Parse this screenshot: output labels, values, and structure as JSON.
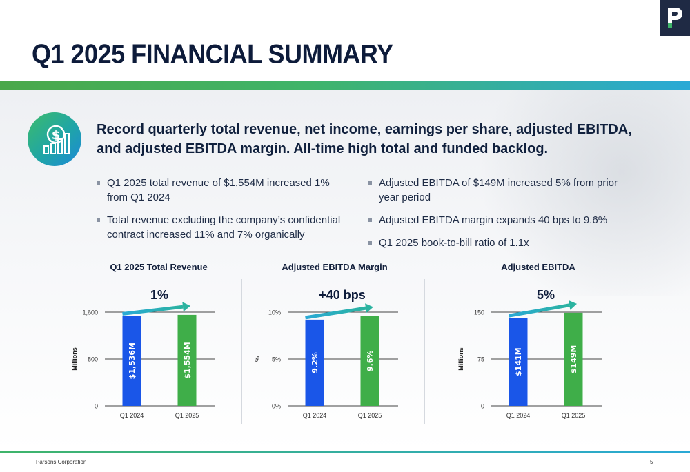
{
  "title": "Q1 2025 FINANCIAL SUMMARY",
  "headline": "Record quarterly total revenue, net income, earnings per share, adjusted EBITDA, and adjusted EBITDA margin. All-time high total and funded backlog.",
  "bullets_left": [
    "Q1 2025 total revenue of $1,554M increased 1% from Q1 2024",
    "Total revenue excluding the company’s confidential contract increased 11% and 7% organically"
  ],
  "bullets_right": [
    "Adjusted EBITDA of $149M increased 5% from prior year period",
    "Adjusted EBITDA margin expands 40 bps to 9.6%",
    "Q1 2025 book-to-bill ratio of 1.1x"
  ],
  "colors": {
    "blue_bar": "#1a56e8",
    "green_bar": "#3fae49",
    "arrow": "#2bb3a0",
    "navy": "#0d1b3a"
  },
  "chart_data": [
    {
      "type": "bar",
      "title": "Q1 2025 Total Revenue",
      "categories": [
        "Q1 2024",
        "Q1 2025"
      ],
      "values": [
        1536,
        1554
      ],
      "data_labels": [
        "$1,536M",
        "$1,554M"
      ],
      "ylabel": "Millions",
      "ylim": [
        0,
        1600
      ],
      "ticks": [
        0,
        800,
        1600
      ],
      "tick_labels": [
        "0",
        "800",
        "1,600"
      ],
      "change_label": "1%",
      "grid": true
    },
    {
      "type": "bar",
      "title": "Adjusted EBITDA Margin",
      "categories": [
        "Q1 2024",
        "Q1 2025"
      ],
      "values": [
        9.2,
        9.6
      ],
      "data_labels": [
        "9.2%",
        "9.6%"
      ],
      "ylabel": "%",
      "ylim": [
        0,
        10
      ],
      "ticks": [
        0,
        5,
        10
      ],
      "tick_labels": [
        "0%",
        "5%",
        "10%"
      ],
      "change_label": "+40 bps",
      "grid": true
    },
    {
      "type": "bar",
      "title": "Adjusted EBITDA",
      "categories": [
        "Q1 2024",
        "Q1 2025"
      ],
      "values": [
        141,
        149
      ],
      "data_labels": [
        "$141M",
        "$149M"
      ],
      "ylabel": "Millions",
      "ylim": [
        0,
        150
      ],
      "ticks": [
        0,
        75,
        150
      ],
      "tick_labels": [
        "0",
        "75",
        "150"
      ],
      "change_label": "5%",
      "grid": true
    }
  ],
  "footer": {
    "company": "Parsons Corporation",
    "page": "5"
  }
}
